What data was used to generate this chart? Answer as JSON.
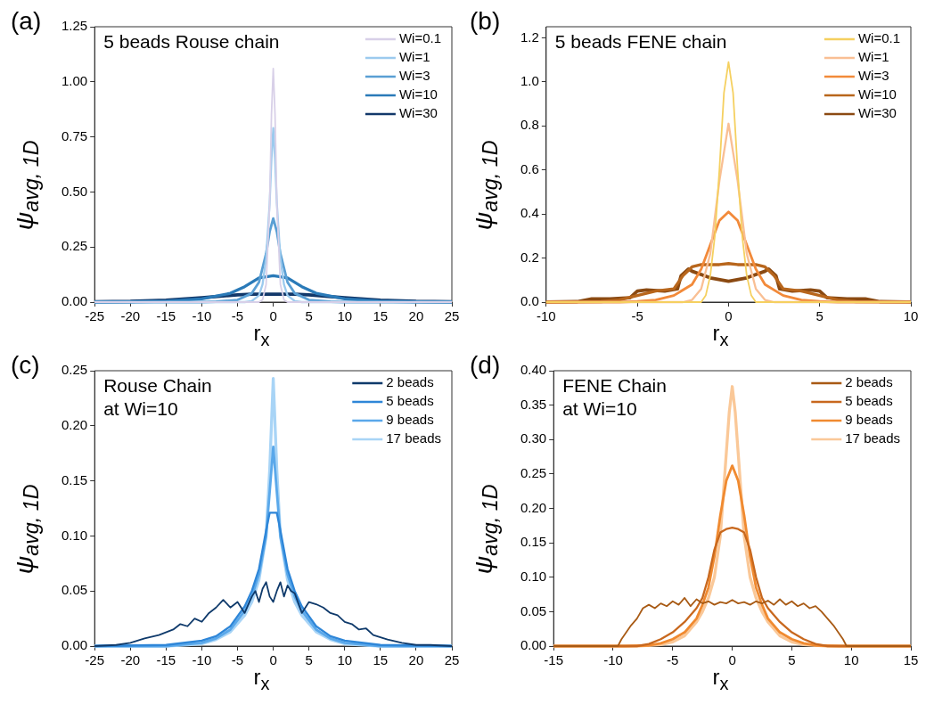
{
  "chart_data": [
    {
      "type": "line",
      "title": "(a)",
      "xlabel": "r$_{x}$",
      "ylabel": "ψ$_{avg, 1D}$",
      "annotations": [
        "5 beads Rouse chain"
      ],
      "legend": "top right",
      "grid": false,
      "marker": "none",
      "line_style": "solid",
      "xlim": [
        -25,
        25
      ],
      "xticks": [
        -25,
        -20,
        -15,
        -10,
        -5,
        0,
        5,
        10,
        15,
        20,
        25
      ],
      "ylim": [
        0,
        1.25
      ],
      "yticks": [
        {
          "value": 0,
          "label": "0.00"
        },
        {
          "value": 0.25,
          "label": "0.25"
        },
        {
          "value": 0.5,
          "label": "0.50"
        },
        {
          "value": 0.75,
          "label": "0.75"
        },
        {
          "value": 1,
          "label": "1.00"
        },
        {
          "value": 1.25,
          "label": "1.25"
        }
      ],
      "series": [
        {
          "name": "Wi=0.1",
          "color": "#d8d0e8",
          "x": [
            -25,
            -2,
            -1.5,
            -1,
            -0.5,
            -0.25,
            0,
            0.25,
            0.5,
            1,
            1.5,
            2,
            25
          ],
          "values": [
            0,
            0,
            0.01,
            0.08,
            0.45,
            0.85,
            1.06,
            0.85,
            0.45,
            0.08,
            0.01,
            0,
            0
          ]
        },
        {
          "name": "Wi=1",
          "color": "#9ccaee",
          "x": [
            -25,
            -4,
            -3,
            -2,
            -1.5,
            -1,
            -0.5,
            -0.25,
            0,
            0.25,
            0.5,
            1,
            1.5,
            2,
            3,
            4,
            25
          ],
          "values": [
            0,
            0,
            0.005,
            0.03,
            0.08,
            0.2,
            0.45,
            0.65,
            0.79,
            0.65,
            0.45,
            0.2,
            0.08,
            0.03,
            0.005,
            0,
            0
          ]
        },
        {
          "name": "Wi=3",
          "color": "#5a9fd4",
          "x": [
            -25,
            -10,
            -8,
            -5,
            -3,
            -2,
            -1,
            -0.5,
            0,
            0.5,
            1,
            2,
            3,
            5,
            8,
            10,
            25
          ],
          "values": [
            0,
            0,
            0.002,
            0.01,
            0.04,
            0.09,
            0.22,
            0.32,
            0.38,
            0.32,
            0.22,
            0.09,
            0.04,
            0.01,
            0.002,
            0,
            0
          ]
        },
        {
          "name": "Wi=10",
          "color": "#2a7ab8",
          "x": [
            -25,
            -20,
            -15,
            -10,
            -6,
            -4,
            -2,
            0,
            2,
            4,
            6,
            10,
            15,
            20,
            25
          ],
          "values": [
            0,
            0.001,
            0.004,
            0.015,
            0.04,
            0.07,
            0.11,
            0.12,
            0.11,
            0.07,
            0.04,
            0.015,
            0.004,
            0.001,
            0
          ]
        },
        {
          "name": "Wi=30",
          "color": "#12386a",
          "x": [
            -25,
            -20,
            -15,
            -10,
            -5,
            -3,
            0,
            3,
            5,
            10,
            15,
            20,
            25
          ],
          "values": [
            0.001,
            0.003,
            0.009,
            0.02,
            0.033,
            0.036,
            0.036,
            0.036,
            0.033,
            0.02,
            0.009,
            0.003,
            0.001
          ]
        }
      ]
    },
    {
      "type": "line",
      "title": "(b)",
      "xlabel": "r$_{x}$",
      "ylabel": "ψ$_{avg, 1D}$",
      "annotations": [
        "5 beads FENE chain"
      ],
      "legend": "top right",
      "grid": false,
      "marker": "none",
      "line_style": "solid",
      "xlim": [
        -10,
        10
      ],
      "xticks": [
        -10,
        -5,
        0,
        5,
        10
      ],
      "ylim": [
        0,
        1.25
      ],
      "yticks": [
        {
          "value": 0,
          "label": "0.0"
        },
        {
          "value": 0.2,
          "label": "0.2"
        },
        {
          "value": 0.4,
          "label": "0.4"
        },
        {
          "value": 0.6,
          "label": "0.6"
        },
        {
          "value": 0.8,
          "label": "0.8"
        },
        {
          "value": 1,
          "label": "1.0"
        },
        {
          "value": 1.2,
          "label": "1.2"
        }
      ],
      "series": [
        {
          "name": "Wi=0.1",
          "color": "#f5d060",
          "x": [
            -10,
            -1.5,
            -1.25,
            -1,
            -0.75,
            -0.5,
            -0.25,
            0,
            0.25,
            0.5,
            0.75,
            1,
            1.25,
            1.5,
            10
          ],
          "values": [
            0,
            0,
            0.03,
            0.12,
            0.3,
            0.6,
            0.95,
            1.09,
            0.95,
            0.6,
            0.3,
            0.12,
            0.03,
            0,
            0
          ]
        },
        {
          "name": "Wi=1",
          "color": "#f9bf94",
          "x": [
            -10,
            -2.5,
            -2,
            -1.5,
            -1,
            -0.5,
            0,
            0.5,
            1,
            1.5,
            2,
            2.5,
            10
          ],
          "values": [
            0,
            0,
            0.01,
            0.06,
            0.22,
            0.55,
            0.81,
            0.55,
            0.22,
            0.06,
            0.01,
            0,
            0
          ]
        },
        {
          "name": "Wi=3",
          "color": "#f28a3a",
          "x": [
            -10,
            -6,
            -5,
            -4,
            -3,
            -2,
            -1.5,
            -1,
            -0.5,
            0,
            0.5,
            1,
            1.5,
            2,
            3,
            4,
            5,
            6,
            10
          ],
          "values": [
            0,
            0,
            0.003,
            0.01,
            0.03,
            0.08,
            0.15,
            0.26,
            0.37,
            0.41,
            0.37,
            0.26,
            0.15,
            0.08,
            0.03,
            0.01,
            0.003,
            0,
            0
          ]
        },
        {
          "name": "Wi=10",
          "color": "#b8661c",
          "x": [
            -10,
            -7,
            -6,
            -5,
            -4,
            -3,
            -2.5,
            -2,
            -1.5,
            -0.5,
            0,
            0.5,
            1.5,
            2,
            2.5,
            3,
            4,
            5,
            6,
            7,
            10
          ],
          "values": [
            0,
            0.002,
            0.01,
            0.03,
            0.05,
            0.06,
            0.12,
            0.16,
            0.17,
            0.17,
            0.175,
            0.17,
            0.17,
            0.16,
            0.12,
            0.06,
            0.05,
            0.03,
            0.01,
            0.002,
            0
          ]
        },
        {
          "name": "Wi=30",
          "color": "#8b4a12",
          "x": [
            -10,
            -8.3,
            -7.5,
            -6.5,
            -5.4,
            -5,
            -4.5,
            -3.5,
            -2.8,
            -2.6,
            -2.2,
            -2,
            -1,
            0,
            1,
            2,
            2.2,
            2.6,
            2.8,
            3.5,
            4.5,
            5,
            5.4,
            6.5,
            7.5,
            8.3,
            10
          ],
          "values": [
            0,
            0.002,
            0.015,
            0.015,
            0.02,
            0.05,
            0.055,
            0.05,
            0.06,
            0.12,
            0.15,
            0.14,
            0.11,
            0.095,
            0.11,
            0.14,
            0.15,
            0.12,
            0.06,
            0.05,
            0.055,
            0.05,
            0.02,
            0.015,
            0.015,
            0.002,
            0
          ]
        }
      ]
    },
    {
      "type": "line",
      "title": "(c)",
      "xlabel": "r$_{x}$",
      "ylabel": "ψ$_{avg, 1D}$",
      "annotations": [
        "Rouse Chain\nat Wi=10"
      ],
      "legend": "top right",
      "grid": false,
      "marker": "none",
      "line_style": "solid",
      "xlim": [
        -25,
        25
      ],
      "xticks": [
        -25,
        -20,
        -15,
        -10,
        -5,
        0,
        5,
        10,
        15,
        20,
        25
      ],
      "ylim": [
        0,
        0.25
      ],
      "yticks": [
        {
          "value": 0,
          "label": "0.00"
        },
        {
          "value": 0.05,
          "label": "0.05"
        },
        {
          "value": 0.1,
          "label": "0.10"
        },
        {
          "value": 0.15,
          "label": "0.15"
        },
        {
          "value": 0.2,
          "label": "0.20"
        },
        {
          "value": 0.25,
          "label": "0.25"
        }
      ],
      "series": [
        {
          "name": "2 beads",
          "color": "#0f3a6b",
          "x": [
            -25,
            -22,
            -20,
            -18,
            -16,
            -14,
            -13,
            -12,
            -11,
            -10,
            -9,
            -8,
            -7,
            -6,
            -5,
            -4,
            -3,
            -2.5,
            -2,
            -1.5,
            -1,
            -0.5,
            0,
            0.5,
            1,
            1.5,
            2,
            2.5,
            3,
            4,
            5,
            6,
            7,
            8,
            9,
            10,
            11,
            12,
            13,
            14,
            16,
            18,
            20,
            22,
            25
          ],
          "values": [
            0,
            0.001,
            0.003,
            0.007,
            0.01,
            0.015,
            0.02,
            0.018,
            0.025,
            0.022,
            0.03,
            0.035,
            0.042,
            0.035,
            0.04,
            0.03,
            0.045,
            0.05,
            0.04,
            0.052,
            0.058,
            0.045,
            0.04,
            0.05,
            0.058,
            0.045,
            0.055,
            0.05,
            0.048,
            0.03,
            0.04,
            0.038,
            0.035,
            0.03,
            0.028,
            0.022,
            0.02,
            0.015,
            0.016,
            0.01,
            0.006,
            0.003,
            0.001,
            0.001,
            0
          ]
        },
        {
          "name": "5 beads",
          "color": "#2e86d8",
          "x": [
            -25,
            -15,
            -10,
            -8,
            -6,
            -4,
            -3,
            -2,
            -1,
            -0.5,
            0,
            0.5,
            1,
            2,
            3,
            4,
            6,
            8,
            10,
            15,
            25
          ],
          "values": [
            0,
            0.001,
            0.005,
            0.009,
            0.018,
            0.036,
            0.05,
            0.07,
            0.105,
            0.121,
            0.121,
            0.121,
            0.105,
            0.07,
            0.05,
            0.036,
            0.018,
            0.009,
            0.005,
            0.001,
            0
          ]
        },
        {
          "name": "9 beads",
          "color": "#5aa8ea",
          "x": [
            -25,
            -15,
            -10,
            -8,
            -6,
            -4,
            -3,
            -2,
            -1,
            -0.5,
            0,
            0.5,
            1,
            2,
            3,
            4,
            6,
            8,
            10,
            15,
            25
          ],
          "values": [
            0,
            0,
            0.003,
            0.007,
            0.015,
            0.032,
            0.045,
            0.065,
            0.1,
            0.14,
            0.181,
            0.14,
            0.1,
            0.065,
            0.045,
            0.032,
            0.015,
            0.007,
            0.003,
            0,
            0
          ]
        },
        {
          "name": "17 beads",
          "color": "#a8d4f6",
          "x": [
            -25,
            -15,
            -10,
            -8,
            -6,
            -4,
            -3,
            -2,
            -1,
            -0.5,
            0,
            0.5,
            1,
            2,
            3,
            4,
            6,
            8,
            10,
            15,
            25
          ],
          "values": [
            0,
            0,
            0.002,
            0.006,
            0.013,
            0.028,
            0.04,
            0.06,
            0.1,
            0.16,
            0.243,
            0.16,
            0.1,
            0.06,
            0.04,
            0.028,
            0.013,
            0.006,
            0.002,
            0,
            0
          ]
        }
      ]
    },
    {
      "type": "line",
      "title": "(d)",
      "xlabel": "r$_{x}$",
      "ylabel": "ψ$_{avg, 1D}$",
      "annotations": [
        "FENE Chain\nat Wi=10"
      ],
      "legend": "top right",
      "grid": false,
      "marker": "none",
      "line_style": "solid",
      "xlim": [
        -15,
        15
      ],
      "xticks": [
        -15,
        -10,
        -5,
        0,
        5,
        10,
        15
      ],
      "ylim": [
        0,
        0.4
      ],
      "yticks": [
        {
          "value": 0,
          "label": "0.00"
        },
        {
          "value": 0.05,
          "label": "0.05"
        },
        {
          "value": 0.1,
          "label": "0.10"
        },
        {
          "value": 0.15,
          "label": "0.15"
        },
        {
          "value": 0.2,
          "label": "0.20"
        },
        {
          "value": 0.25,
          "label": "0.25"
        },
        {
          "value": 0.3,
          "label": "0.30"
        },
        {
          "value": 0.35,
          "label": "0.35"
        },
        {
          "value": 0.4,
          "label": "0.40"
        }
      ],
      "series": [
        {
          "name": "2 beads",
          "color": "#a85a14",
          "x": [
            -15,
            -9.6,
            -9.3,
            -8.5,
            -8,
            -7.5,
            -7,
            -6.5,
            -6,
            -5.5,
            -5,
            -4.5,
            -4,
            -3.5,
            -3,
            -2.5,
            -2,
            -1.5,
            -1,
            -0.5,
            0,
            0.5,
            1,
            1.5,
            2,
            2.5,
            3,
            3.5,
            4,
            4.5,
            5,
            5.5,
            6,
            6.5,
            7,
            7.5,
            8,
            8.5,
            9.3,
            9.6,
            15
          ],
          "values": [
            0,
            0,
            0.01,
            0.03,
            0.04,
            0.055,
            0.06,
            0.055,
            0.062,
            0.058,
            0.065,
            0.06,
            0.07,
            0.058,
            0.068,
            0.062,
            0.065,
            0.06,
            0.064,
            0.062,
            0.067,
            0.062,
            0.064,
            0.06,
            0.065,
            0.062,
            0.066,
            0.06,
            0.068,
            0.06,
            0.065,
            0.058,
            0.062,
            0.055,
            0.058,
            0.05,
            0.04,
            0.03,
            0.01,
            0,
            0
          ]
        },
        {
          "name": "5 beads",
          "color": "#c8681e",
          "x": [
            -15,
            -8,
            -7,
            -6,
            -5,
            -4,
            -3,
            -2.5,
            -2,
            -1.5,
            -1,
            -0.5,
            0,
            0.5,
            1,
            1.5,
            2,
            2.5,
            3,
            4,
            5,
            6,
            7,
            8,
            15
          ],
          "values": [
            0,
            0,
            0.003,
            0.01,
            0.02,
            0.035,
            0.055,
            0.07,
            0.1,
            0.14,
            0.165,
            0.17,
            0.172,
            0.17,
            0.165,
            0.14,
            0.1,
            0.07,
            0.055,
            0.035,
            0.02,
            0.01,
            0.003,
            0,
            0
          ]
        },
        {
          "name": "9 beads",
          "color": "#f08a30",
          "x": [
            -15,
            -9,
            -7,
            -6,
            -5,
            -4,
            -3,
            -2.5,
            -2,
            -1.5,
            -1,
            -0.5,
            0,
            0.5,
            1,
            1.5,
            2,
            2.5,
            3,
            4,
            5,
            6,
            7,
            9,
            15
          ],
          "values": [
            0,
            0,
            0.001,
            0.004,
            0.01,
            0.02,
            0.04,
            0.06,
            0.085,
            0.13,
            0.19,
            0.24,
            0.262,
            0.24,
            0.19,
            0.13,
            0.085,
            0.06,
            0.04,
            0.02,
            0.01,
            0.004,
            0.001,
            0,
            0
          ]
        },
        {
          "name": "17 beads",
          "color": "#fac898",
          "x": [
            -15,
            -8,
            -6,
            -5,
            -4,
            -3,
            -2.5,
            -2,
            -1.5,
            -1,
            -0.5,
            -0.25,
            0,
            0.25,
            0.5,
            1,
            1.5,
            2,
            2.5,
            3,
            4,
            5,
            6,
            8,
            15
          ],
          "values": [
            0,
            0,
            0.002,
            0.006,
            0.015,
            0.035,
            0.05,
            0.07,
            0.1,
            0.16,
            0.28,
            0.34,
            0.377,
            0.34,
            0.28,
            0.16,
            0.1,
            0.07,
            0.05,
            0.035,
            0.015,
            0.006,
            0.002,
            0,
            0
          ]
        }
      ]
    }
  ]
}
